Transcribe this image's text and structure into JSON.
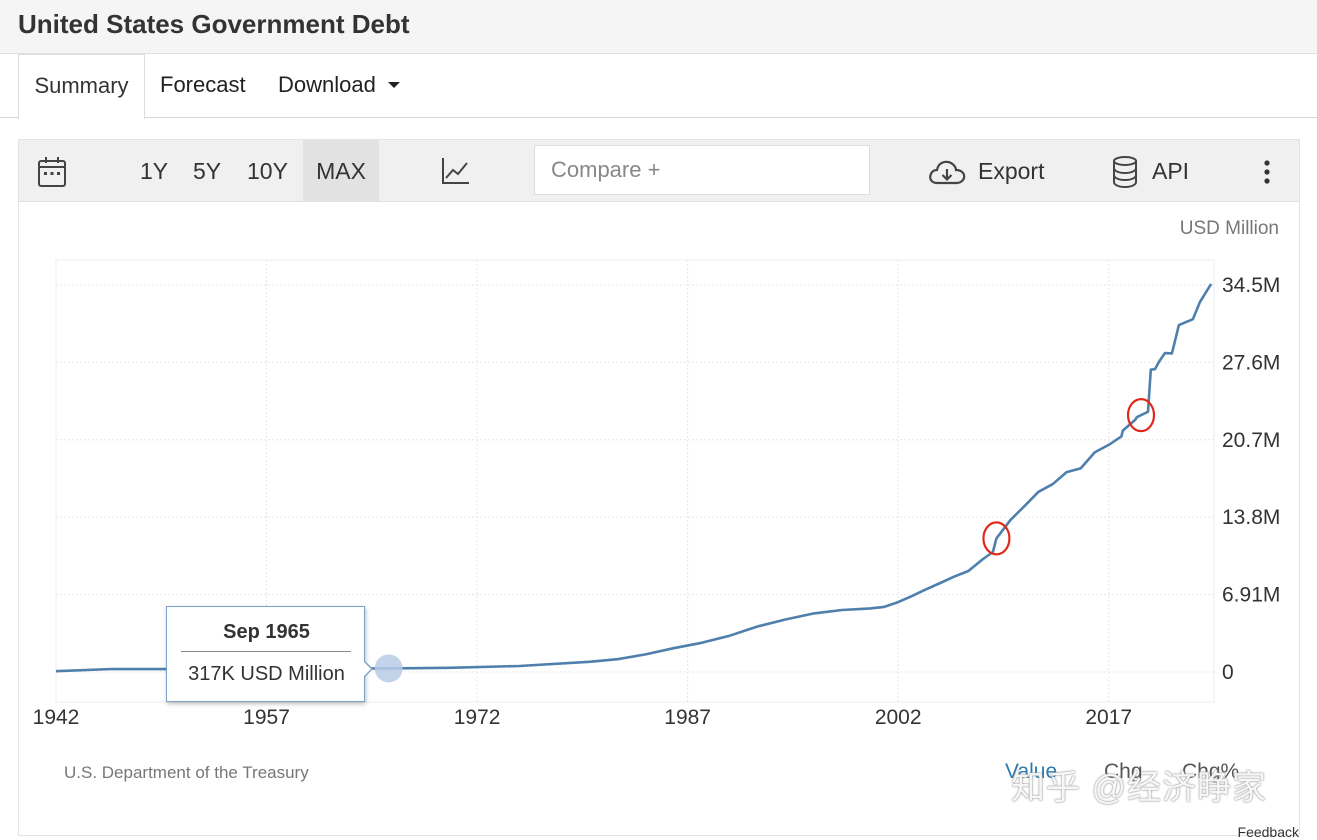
{
  "page": {
    "title": "United States Government Debt"
  },
  "tabs": {
    "summary": "Summary",
    "forecast": "Forecast",
    "download": "Download"
  },
  "toolbar": {
    "ranges": [
      "1Y",
      "5Y",
      "10Y",
      "MAX"
    ],
    "active_range": "MAX",
    "compare_placeholder": "Compare +",
    "export_label": "Export",
    "api_label": "API"
  },
  "chart_data": {
    "type": "line",
    "unit_label": "USD Million",
    "x_ticks": [
      "1942",
      "1957",
      "1972",
      "1987",
      "2002",
      "2017"
    ],
    "y_ticks": [
      "0",
      "6.91M",
      "13.8M",
      "20.7M",
      "27.6M",
      "34.5M"
    ],
    "xlim": [
      1942,
      2024.5
    ],
    "ylim": [
      0,
      34500000
    ],
    "grid": true,
    "series": [
      {
        "color": "#4f7fac",
        "x": [
          1942,
          1946,
          1950,
          1955,
          1960,
          1965.7,
          1970,
          1975,
          1980,
          1982,
          1984,
          1986,
          1988,
          1990,
          1992,
          1994,
          1996,
          1998,
          2000,
          2001,
          2002,
          2003,
          2004,
          2005,
          2006,
          2007,
          2008,
          2008.75,
          2009,
          2010,
          2011,
          2012,
          2013,
          2014,
          2015,
          2016,
          2017,
          2017.9,
          2018,
          2018.9,
          2019,
          2019.8,
          2020,
          2020.3,
          2020.6,
          2021,
          2021.5,
          2022,
          2022.9,
          2023,
          2023.5,
          2024,
          2024.3
        ],
        "y": [
          72000,
          269000,
          257000,
          274000,
          286000,
          317000,
          371000,
          533000,
          908000,
          1142000,
          1572000,
          2125000,
          2602000,
          3233000,
          4065000,
          4693000,
          5225000,
          5526000,
          5674000,
          5807000,
          6228000,
          6783000,
          7379000,
          7933000,
          8507000,
          9008000,
          10025000,
          10700000,
          11910000,
          13562000,
          14790000,
          16066000,
          16738000,
          17824000,
          18151000,
          19573000,
          20245000,
          21000000,
          21516000,
          22500000,
          22719000,
          23200000,
          26945000,
          27000000,
          27700000,
          28428000,
          28400000,
          30929000,
          31400000,
          31460000,
          32990000,
          34000000,
          34600000
        ]
      }
    ],
    "annotations": [
      "circle around 2009",
      "circle around 2019"
    ],
    "tooltip": {
      "date": "Sep 1965",
      "value": "317K USD Million",
      "x": 1965.7,
      "y": 317000
    }
  },
  "footer": {
    "source": "U.S. Department of the Treasury",
    "value_options": [
      "Value",
      "Chg",
      "Chg%"
    ],
    "active_value_option": "Value",
    "watermark": "知乎 @经济睁家",
    "feedback": "Feedback"
  }
}
